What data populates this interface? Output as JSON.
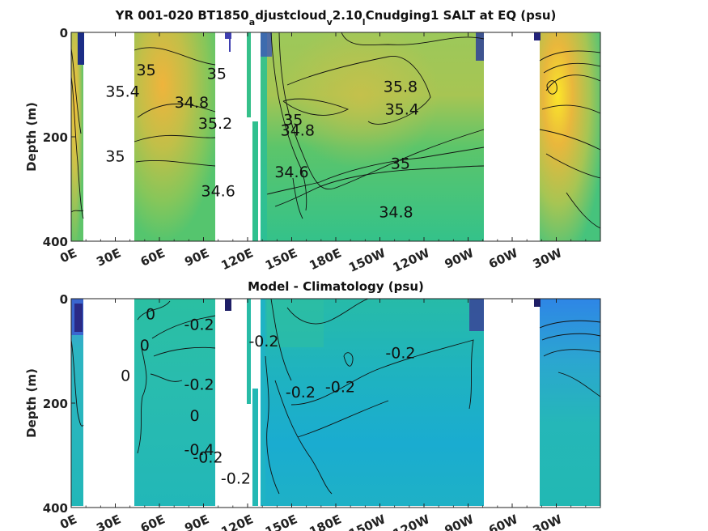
{
  "chart_data": [
    {
      "type": "heatmap",
      "title": "YR 001-020 BT1850",
      "title_parts": [
        {
          "text": "YR 001-020 BT1850",
          "sub": false
        },
        {
          "text": "a",
          "sub": true
        },
        {
          "text": "djustcloud",
          "sub": false
        },
        {
          "text": "v",
          "sub": true
        },
        {
          "text": "2.10",
          "sub": false
        },
        {
          "text": "l",
          "sub": true
        },
        {
          "text": "Cnudging1 SALT at EQ (psu)",
          "sub": false
        }
      ],
      "ylabel": "Depth (m)",
      "xlabel": "",
      "x_ticks": [
        "0E",
        "30E",
        "60E",
        "90E",
        "120E",
        "150E",
        "180E",
        "150W",
        "120W",
        "90W",
        "60W",
        "30W"
      ],
      "y_ticks": [
        "0",
        "200",
        "400"
      ],
      "ylim": [
        0,
        400
      ],
      "y_reversed": true,
      "colormap": "parula",
      "contour_labels": [
        {
          "text": "35",
          "lon": 51,
          "depth": 73
        },
        {
          "text": "35.4",
          "lon": 35,
          "depth": 114
        },
        {
          "text": "35",
          "lon": 30,
          "depth": 238
        },
        {
          "text": "34.8",
          "lon": 82,
          "depth": 135
        },
        {
          "text": "35",
          "lon": 99,
          "depth": 80
        },
        {
          "text": "35.2",
          "lon": 98,
          "depth": 175
        },
        {
          "text": "35",
          "lon": 151,
          "depth": 168
        },
        {
          "text": "34.8",
          "lon": 154,
          "depth": 188
        },
        {
          "text": "34.6",
          "lon": 150,
          "depth": 268
        },
        {
          "text": "34.6",
          "lon": 100,
          "depth": 305
        },
        {
          "text": "35.8",
          "lon": 224,
          "depth": 105
        },
        {
          "text": "35.4",
          "lon": 225,
          "depth": 148
        },
        {
          "text": "35",
          "lon": 224,
          "depth": 252
        },
        {
          "text": "34.8",
          "lon": 221,
          "depth": 345
        }
      ]
    },
    {
      "type": "heatmap",
      "title": "Model - Climatology (psu)",
      "ylabel": "Depth (m)",
      "xlabel": "",
      "x_ticks": [
        "0E",
        "30E",
        "60E",
        "90E",
        "120E",
        "150E",
        "180E",
        "150W",
        "120W",
        "90W",
        "60W",
        "30W"
      ],
      "y_ticks": [
        "0",
        "200",
        "400"
      ],
      "ylim": [
        0,
        400
      ],
      "y_reversed": true,
      "colormap": "parula",
      "contour_labels": [
        {
          "text": "0",
          "lon": 54,
          "depth": 30
        },
        {
          "text": "0",
          "lon": 50,
          "depth": 90
        },
        {
          "text": "0",
          "lon": 37,
          "depth": 148
        },
        {
          "text": "-0.2",
          "lon": 87,
          "depth": 50
        },
        {
          "text": "-0.2",
          "lon": 131,
          "depth": 82
        },
        {
          "text": "-0.2",
          "lon": 87,
          "depth": 165
        },
        {
          "text": "-0.2",
          "lon": 156,
          "depth": 180
        },
        {
          "text": "-0.2",
          "lon": 183,
          "depth": 170
        },
        {
          "text": "0",
          "lon": 84,
          "depth": 225
        },
        {
          "text": "-0.4",
          "lon": 87,
          "depth": 290
        },
        {
          "text": "-0.2",
          "lon": 93,
          "depth": 305
        },
        {
          "text": "-0.2",
          "lon": 112,
          "depth": 345
        },
        {
          "text": "-0.2",
          "lon": 224,
          "depth": 105
        }
      ]
    }
  ]
}
